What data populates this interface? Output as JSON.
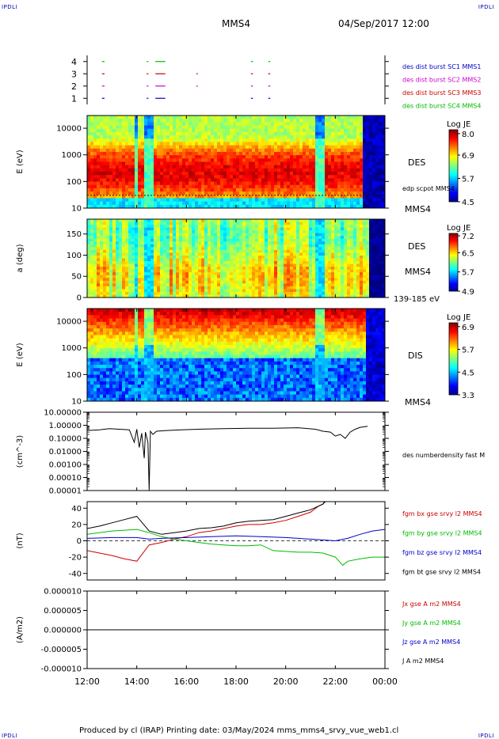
{
  "header": {
    "corner_tl": "IPDLI",
    "corner_tr": "IPDLI",
    "spacecraft": "MMS4",
    "datetime": "04/Sep/2017 12:00"
  },
  "footer": {
    "corner_bl": "IPDLI",
    "corner_br": "IPDLI",
    "text": "Produced by cl (IRAP)   Printing date: 03/May/2024   mms_mms4_srvy_vue_web1.cl"
  },
  "time_axis": {
    "tick_labels": [
      "12:00",
      "14:00",
      "16:00",
      "18:00",
      "20:00",
      "22:00",
      "00:00"
    ],
    "hours": [
      12,
      14,
      16,
      18,
      20,
      22,
      24
    ],
    "range_hours": [
      12,
      24
    ]
  },
  "colors": {
    "black": "#000000",
    "red": "#cc0000",
    "green": "#00bb00",
    "blue": "#0000cc",
    "magenta": "#cc00cc"
  },
  "chart_data": [
    {
      "type": "scatter",
      "id": "burst",
      "ylabel": "",
      "ylim": [
        0.5,
        4.5
      ],
      "y_ticks": [
        1,
        2,
        3,
        4
      ],
      "y_tick_labels": [
        "1",
        "2",
        "3",
        "4"
      ],
      "legend": [
        {
          "name": "des dist burst SC1 MMS1",
          "color": "#0000cc"
        },
        {
          "name": "des dist burst SC2 MMS2",
          "color": "#cc00cc"
        },
        {
          "name": "des dist burst SC3 MMS3",
          "color": "#cc0000"
        },
        {
          "name": "des dist burst SC4 MMS4",
          "color": "#00bb00"
        }
      ],
      "series": [
        {
          "name": "des dist burst SC1 MMS1",
          "level": 1,
          "color": "#0000cc",
          "intervals": [
            [
              12.6,
              12.7
            ],
            [
              14.4,
              14.47
            ],
            [
              14.75,
              15.15
            ],
            [
              18.6,
              18.68
            ],
            [
              19.3,
              19.38
            ]
          ]
        },
        {
          "name": "des dist burst SC2 MMS2",
          "level": 2,
          "color": "#cc00cc",
          "intervals": [
            [
              12.6,
              12.7
            ],
            [
              14.4,
              14.47
            ],
            [
              14.75,
              15.15
            ],
            [
              16.4,
              16.46
            ],
            [
              18.6,
              18.68
            ],
            [
              19.3,
              19.38
            ]
          ]
        },
        {
          "name": "des dist burst SC3 MMS3",
          "level": 3,
          "color": "#cc0000",
          "intervals": [
            [
              12.6,
              12.7
            ],
            [
              14.4,
              14.47
            ],
            [
              14.75,
              15.15
            ],
            [
              16.4,
              16.46
            ],
            [
              18.6,
              18.68
            ],
            [
              19.3,
              19.38
            ]
          ]
        },
        {
          "name": "des dist burst SC4 MMS4",
          "level": 4,
          "color": "#00bb00",
          "intervals": [
            [
              12.6,
              12.7
            ],
            [
              14.4,
              14.47
            ],
            [
              14.75,
              15.15
            ],
            [
              18.6,
              18.68
            ],
            [
              19.3,
              19.38
            ]
          ]
        }
      ]
    },
    {
      "type": "heatmap",
      "id": "des_energy",
      "ylabel": "E (eV)",
      "scale": "log",
      "ylim": [
        10,
        30000
      ],
      "y_ticks": [
        10,
        100,
        1000,
        10000
      ],
      "y_tick_labels": [
        "10",
        "100",
        "1000",
        "10000"
      ],
      "label": "DES",
      "overlay_label": "edp scpot MMS4",
      "sc_label": "MMS4",
      "colorbar": {
        "title": "Log JE",
        "min": 4.5,
        "max": 8.2,
        "ticks": [
          8.0,
          6.9,
          5.7,
          4.5
        ],
        "tick_labels": [
          "8.0",
          "6.9",
          "5.7",
          "4.5"
        ]
      }
    },
    {
      "type": "heatmap",
      "id": "des_pitch",
      "ylabel": "a (deg)",
      "scale": "linear",
      "ylim": [
        0,
        185
      ],
      "y_ticks": [
        0,
        50,
        100,
        150
      ],
      "y_tick_labels": [
        "0",
        "50",
        "100",
        "150"
      ],
      "label": "DES",
      "sc_label": "MMS4",
      "energy_label": "139-185 eV",
      "colorbar": {
        "title": "Log JE",
        "min": 4.9,
        "max": 7.3,
        "ticks": [
          7.2,
          6.5,
          5.7,
          4.9
        ],
        "tick_labels": [
          "7.2",
          "6.5",
          "5.7",
          "4.9"
        ]
      }
    },
    {
      "type": "heatmap",
      "id": "dis_energy",
      "ylabel": "E (eV)",
      "scale": "log",
      "ylim": [
        10,
        30000
      ],
      "y_ticks": [
        10,
        100,
        1000,
        10000
      ],
      "y_tick_labels": [
        "10",
        "100",
        "1000",
        "10000"
      ],
      "label": "DIS",
      "sc_label": "MMS4",
      "colorbar": {
        "title": "Log JE",
        "min": 3.3,
        "max": 7.1,
        "ticks": [
          6.9,
          5.7,
          4.5,
          3.3
        ],
        "tick_labels": [
          "6.9",
          "5.7",
          "4.5",
          "3.3"
        ]
      }
    },
    {
      "type": "line",
      "id": "density",
      "ylabel": "(cm^-3)",
      "scale": "log",
      "ylim": [
        1e-05,
        10
      ],
      "y_ticks": [
        10,
        1,
        0.1,
        0.01,
        0.001,
        0.0001,
        1e-05
      ],
      "y_tick_labels": [
        "10.00000",
        "1.00000",
        "0.10000",
        "0.01000",
        "0.00100",
        "0.00010",
        "0.00001"
      ],
      "legend": [
        {
          "name": "des numberdensity fast M",
          "color": "#000000"
        }
      ],
      "series": [
        {
          "name": "des numberdensity fast M",
          "color": "#000000",
          "x": [
            12.0,
            12.5,
            12.9,
            13.3,
            13.7,
            13.9,
            14.0,
            14.1,
            14.2,
            14.3,
            14.35,
            14.45,
            14.5,
            14.55,
            14.65,
            14.8,
            15.2,
            15.8,
            16.5,
            17.5,
            18.5,
            19.5,
            20.5,
            21.2,
            21.5,
            21.8,
            22.0,
            22.2,
            22.4,
            22.6,
            22.8,
            23.0,
            23.3
          ],
          "y": [
            0.4,
            0.45,
            0.55,
            0.5,
            0.45,
            0.05,
            0.5,
            0.02,
            0.25,
            0.003,
            0.3,
            0.05,
            1e-05,
            0.35,
            0.2,
            0.35,
            0.4,
            0.45,
            0.5,
            0.55,
            0.6,
            0.6,
            0.65,
            0.5,
            0.35,
            0.3,
            0.15,
            0.2,
            0.1,
            0.3,
            0.5,
            0.7,
            0.85
          ]
        }
      ]
    },
    {
      "type": "line",
      "id": "fgm",
      "ylabel": "(nT)",
      "ylim": [
        -48,
        48
      ],
      "y_ticks": [
        40,
        20,
        0,
        -20,
        -40
      ],
      "y_tick_labels": [
        "40",
        "20",
        "0",
        "-20",
        "-40"
      ],
      "legend": [
        {
          "name": "fgm bx gse srvy l2 MMS4",
          "color": "#cc0000"
        },
        {
          "name": "fgm by gse srvy l2 MMS4",
          "color": "#00bb00"
        },
        {
          "name": "fgm bz gse srvy l2 MMS4",
          "color": "#0000cc"
        },
        {
          "name": "fgm bt gse srvy l2 MMS4",
          "color": "#000000"
        }
      ],
      "series": [
        {
          "name": "fgm bx gse srvy l2 MMS4",
          "color": "#cc0000",
          "x": [
            12.0,
            12.5,
            13.0,
            13.5,
            14.0,
            14.5,
            15.0,
            15.5,
            16.0,
            16.5,
            17.0,
            17.5,
            18.0,
            18.5,
            19.0,
            19.5,
            20.0,
            20.5,
            21.0,
            21.3,
            21.5,
            21.6
          ],
          "y": [
            -12,
            -15,
            -18,
            -22,
            -25,
            -5,
            -2,
            2,
            5,
            10,
            12,
            15,
            18,
            20,
            20,
            22,
            25,
            30,
            35,
            42,
            45,
            50
          ]
        },
        {
          "name": "fgm by gse srvy l2 MMS4",
          "color": "#00bb00",
          "x": [
            12.0,
            12.5,
            13.0,
            13.5,
            14.0,
            14.5,
            15.0,
            15.5,
            16.0,
            16.5,
            17.0,
            17.5,
            18.0,
            18.5,
            19.0,
            19.5,
            20.0,
            20.5,
            21.0,
            21.5,
            22.0,
            22.3,
            22.5,
            23.0,
            23.5,
            24.0
          ],
          "y": [
            8,
            10,
            12,
            13,
            14,
            10,
            5,
            2,
            0,
            -2,
            -4,
            -5,
            -6,
            -6,
            -5,
            -12,
            -13,
            -14,
            -14,
            -15,
            -20,
            -30,
            -25,
            -22,
            -20,
            -20
          ]
        },
        {
          "name": "fgm bz gse srvy l2 MMS4",
          "color": "#0000cc",
          "x": [
            12.0,
            13.0,
            14.0,
            14.5,
            15.0,
            16.0,
            17.0,
            18.0,
            19.0,
            20.0,
            21.0,
            22.0,
            22.5,
            23.0,
            23.5,
            24.0
          ],
          "y": [
            3,
            4,
            4,
            2,
            3,
            4,
            5,
            6,
            5,
            4,
            2,
            0,
            3,
            8,
            12,
            14
          ]
        },
        {
          "name": "fgm bt gse srvy l2 MMS4",
          "color": "#000000",
          "x": [
            12.0,
            12.5,
            13.0,
            13.5,
            14.0,
            14.5,
            15.0,
            15.5,
            16.0,
            16.5,
            17.0,
            17.5,
            18.0,
            18.5,
            19.0,
            19.5,
            20.0,
            20.5,
            21.0,
            21.5,
            21.6
          ],
          "y": [
            15,
            18,
            22,
            26,
            30,
            12,
            8,
            10,
            12,
            15,
            16,
            18,
            22,
            24,
            25,
            26,
            30,
            34,
            38,
            45,
            48
          ]
        }
      ]
    },
    {
      "type": "line",
      "id": "current",
      "ylabel": "(A/m2)",
      "ylim": [
        -1e-05,
        1e-05
      ],
      "y_ticks": [
        1e-05,
        5e-06,
        0,
        -5e-06,
        -1e-05
      ],
      "y_tick_labels": [
        "0.000010",
        "0.000005",
        "0.000000",
        "-0.000005",
        "-0.000010"
      ],
      "legend": [
        {
          "name": "Jx gse A m2 MMS4",
          "color": "#cc0000"
        },
        {
          "name": "Jy gse A m2 MMS4",
          "color": "#00bb00"
        },
        {
          "name": "Jz gse A m2 MMS4",
          "color": "#0000cc"
        },
        {
          "name": "J A m2 MMS4",
          "color": "#000000"
        }
      ],
      "series": [
        {
          "name": "J A m2 MMS4",
          "color": "#000000",
          "x": [
            12.0,
            24.0
          ],
          "y": [
            0,
            0
          ]
        }
      ]
    }
  ]
}
